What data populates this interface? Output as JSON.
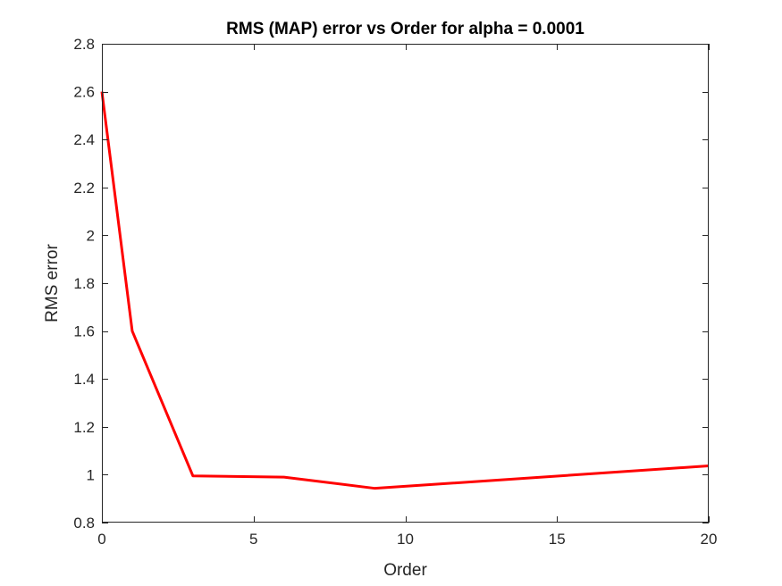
{
  "chart_data": {
    "type": "line",
    "title": "RMS (MAP) error vs Order for alpha = 0.0001",
    "xlabel": "Order",
    "ylabel": "RMS error",
    "xlim": [
      0,
      20
    ],
    "ylim": [
      0.8,
      2.8
    ],
    "xticks": [
      0,
      5,
      10,
      15,
      20
    ],
    "yticks": [
      0.8,
      1,
      1.2,
      1.4,
      1.6,
      1.8,
      2,
      2.2,
      2.4,
      2.6,
      2.8
    ],
    "xtick_labels": [
      "0",
      "5",
      "10",
      "15",
      "20"
    ],
    "ytick_labels": [
      "0.8",
      "1",
      "1.2",
      "1.4",
      "1.6",
      "1.8",
      "2",
      "2.2",
      "2.4",
      "2.6",
      "2.8"
    ],
    "grid": false,
    "series": [
      {
        "color": "#ff0000",
        "x": [
          0,
          1,
          3,
          6,
          9,
          20
        ],
        "y": [
          2.6,
          1.6,
          0.995,
          0.99,
          0.943,
          1.037
        ]
      }
    ]
  }
}
